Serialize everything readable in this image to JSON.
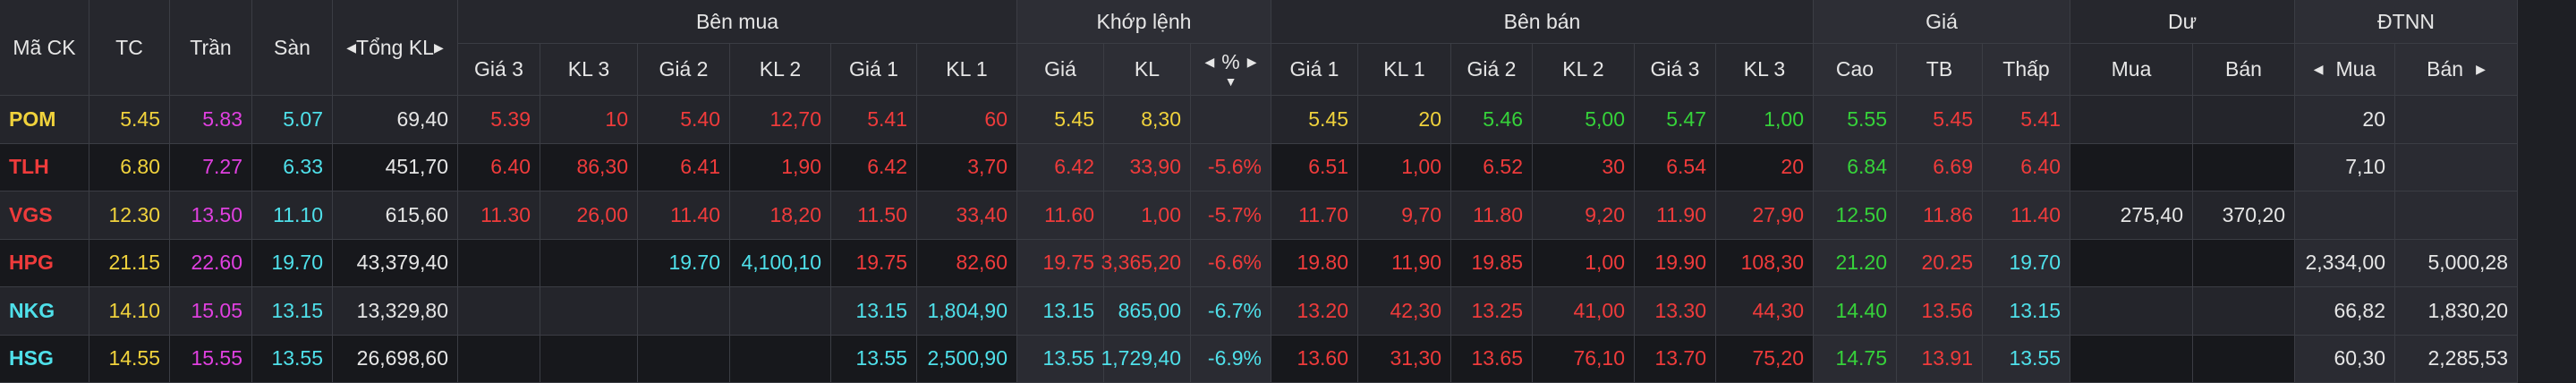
{
  "headers": {
    "symbol": "Mã CK",
    "ref": "TC",
    "ceil": "Trần",
    "floor": "Sàn",
    "total_vol": "Tổng KL",
    "buy_group": "Bên mua",
    "match_group": "Khớp lệnh",
    "sell_group": "Bên bán",
    "price_group": "Giá",
    "remain_group": "Dư",
    "foreign_group": "ĐTNN",
    "g3": "Giá 3",
    "kl3": "KL 3",
    "g2": "Giá 2",
    "kl2": "KL 2",
    "g1": "Giá 1",
    "kl1": "KL 1",
    "m_price": "Giá",
    "m_vol": "KL",
    "m_pct": "%",
    "high": "Cao",
    "avg": "TB",
    "low": "Thấp",
    "r_buy": "Mua",
    "r_sell": "Bán",
    "f_buy": "Mua",
    "f_sell": "Bán"
  },
  "icons": {
    "arrow_left": "◀",
    "arrow_right": "▶",
    "sort_down": "▼"
  },
  "colors": {
    "up": "#36d23a",
    "down": "#ef3b3b",
    "ref": "#f0d23c",
    "ceil": "#e040e0",
    "floor": "#4fe0ea"
  },
  "rows": [
    {
      "symbol": "POM",
      "symbol_color": "yellow",
      "ref": "5.45",
      "ceil": "5.83",
      "floor": "5.07",
      "total": "69,40",
      "b_g3": "5.39",
      "b_kl3": "10",
      "b_g2": "5.40",
      "b_kl2": "12,70",
      "b_g1": "5.41",
      "b_kl1": "60",
      "buy_colors": [
        "red",
        "red",
        "red"
      ],
      "m_price": "5.45",
      "m_vol": "8,30",
      "m_pct": "",
      "m_color": "yellow",
      "s_g1": "5.45",
      "s_kl1": "20",
      "s_g2": "5.46",
      "s_kl2": "5,00",
      "s_g3": "5.47",
      "s_kl3": "1,00",
      "sell_colors": [
        "yellow",
        "green",
        "green"
      ],
      "high": "5.55",
      "avg": "5.45",
      "low": "5.41",
      "price_colors": [
        "green",
        "red",
        "red"
      ],
      "r_buy": "",
      "r_sell": "",
      "f_buy": "20",
      "f_sell": ""
    },
    {
      "symbol": "TLH",
      "symbol_color": "red",
      "ref": "6.80",
      "ceil": "7.27",
      "floor": "6.33",
      "total": "451,70",
      "b_g3": "6.40",
      "b_kl3": "86,30",
      "b_g2": "6.41",
      "b_kl2": "1,90",
      "b_g1": "6.42",
      "b_kl1": "3,70",
      "buy_colors": [
        "red",
        "red",
        "red"
      ],
      "m_price": "6.42",
      "m_vol": "33,90",
      "m_pct": "-5.6%",
      "m_color": "red",
      "s_g1": "6.51",
      "s_kl1": "1,00",
      "s_g2": "6.52",
      "s_kl2": "30",
      "s_g3": "6.54",
      "s_kl3": "20",
      "sell_colors": [
        "red",
        "red",
        "red"
      ],
      "high": "6.84",
      "avg": "6.69",
      "low": "6.40",
      "price_colors": [
        "green",
        "red",
        "red"
      ],
      "r_buy": "",
      "r_sell": "",
      "f_buy": "7,10",
      "f_sell": ""
    },
    {
      "symbol": "VGS",
      "symbol_color": "red",
      "ref": "12.30",
      "ceil": "13.50",
      "floor": "11.10",
      "total": "615,60",
      "b_g3": "11.30",
      "b_kl3": "26,00",
      "b_g2": "11.40",
      "b_kl2": "18,20",
      "b_g1": "11.50",
      "b_kl1": "33,40",
      "buy_colors": [
        "red",
        "red",
        "red"
      ],
      "m_price": "11.60",
      "m_vol": "1,00",
      "m_pct": "-5.7%",
      "m_color": "red",
      "s_g1": "11.70",
      "s_kl1": "9,70",
      "s_g2": "11.80",
      "s_kl2": "9,20",
      "s_g3": "11.90",
      "s_kl3": "27,90",
      "sell_colors": [
        "red",
        "red",
        "red"
      ],
      "high": "12.50",
      "avg": "11.86",
      "low": "11.40",
      "price_colors": [
        "green",
        "red",
        "red"
      ],
      "r_buy": "275,40",
      "r_sell": "370,20",
      "f_buy": "",
      "f_sell": ""
    },
    {
      "symbol": "HPG",
      "symbol_color": "red",
      "ref": "21.15",
      "ceil": "22.60",
      "floor": "19.70",
      "total": "43,379,40",
      "b_g3": "",
      "b_kl3": "",
      "b_g2": "19.70",
      "b_kl2": "4,100,10",
      "b_g1": "19.75",
      "b_kl1": "82,60",
      "buy_colors": [
        "red",
        "cyan",
        "red"
      ],
      "m_price": "19.75",
      "m_vol": "3,365,20",
      "m_pct": "-6.6%",
      "m_color": "red",
      "s_g1": "19.80",
      "s_kl1": "11,90",
      "s_g2": "19.85",
      "s_kl2": "1,00",
      "s_g3": "19.90",
      "s_kl3": "108,30",
      "sell_colors": [
        "red",
        "red",
        "red"
      ],
      "high": "21.20",
      "avg": "20.25",
      "low": "19.70",
      "price_colors": [
        "green",
        "red",
        "cyan"
      ],
      "r_buy": "",
      "r_sell": "",
      "f_buy": "2,334,00",
      "f_sell": "5,000,28"
    },
    {
      "symbol": "NKG",
      "symbol_color": "cyan",
      "ref": "14.10",
      "ceil": "15.05",
      "floor": "13.15",
      "total": "13,329,80",
      "b_g3": "",
      "b_kl3": "",
      "b_g2": "",
      "b_kl2": "",
      "b_g1": "13.15",
      "b_kl1": "1,804,90",
      "buy_colors": [
        "cyan",
        "cyan",
        "cyan"
      ],
      "m_price": "13.15",
      "m_vol": "865,00",
      "m_pct": "-6.7%",
      "m_color": "cyan",
      "s_g1": "13.20",
      "s_kl1": "42,30",
      "s_g2": "13.25",
      "s_kl2": "41,00",
      "s_g3": "13.30",
      "s_kl3": "44,30",
      "sell_colors": [
        "red",
        "red",
        "red"
      ],
      "high": "14.40",
      "avg": "13.56",
      "low": "13.15",
      "price_colors": [
        "green",
        "red",
        "cyan"
      ],
      "r_buy": "",
      "r_sell": "",
      "f_buy": "66,82",
      "f_sell": "1,830,20"
    },
    {
      "symbol": "HSG",
      "symbol_color": "cyan",
      "ref": "14.55",
      "ceil": "15.55",
      "floor": "13.55",
      "total": "26,698,60",
      "b_g3": "",
      "b_kl3": "",
      "b_g2": "",
      "b_kl2": "",
      "b_g1": "13.55",
      "b_kl1": "2,500,90",
      "buy_colors": [
        "cyan",
        "cyan",
        "cyan"
      ],
      "m_price": "13.55",
      "m_vol": "1,729,40",
      "m_pct": "-6.9%",
      "m_color": "cyan",
      "s_g1": "13.60",
      "s_kl1": "31,30",
      "s_g2": "13.65",
      "s_kl2": "76,10",
      "s_g3": "13.70",
      "s_kl3": "75,20",
      "sell_colors": [
        "red",
        "red",
        "red"
      ],
      "high": "14.75",
      "avg": "13.91",
      "low": "13.55",
      "price_colors": [
        "green",
        "red",
        "cyan"
      ],
      "r_buy": "",
      "r_sell": "",
      "f_buy": "60,30",
      "f_sell": "2,285,53"
    }
  ]
}
